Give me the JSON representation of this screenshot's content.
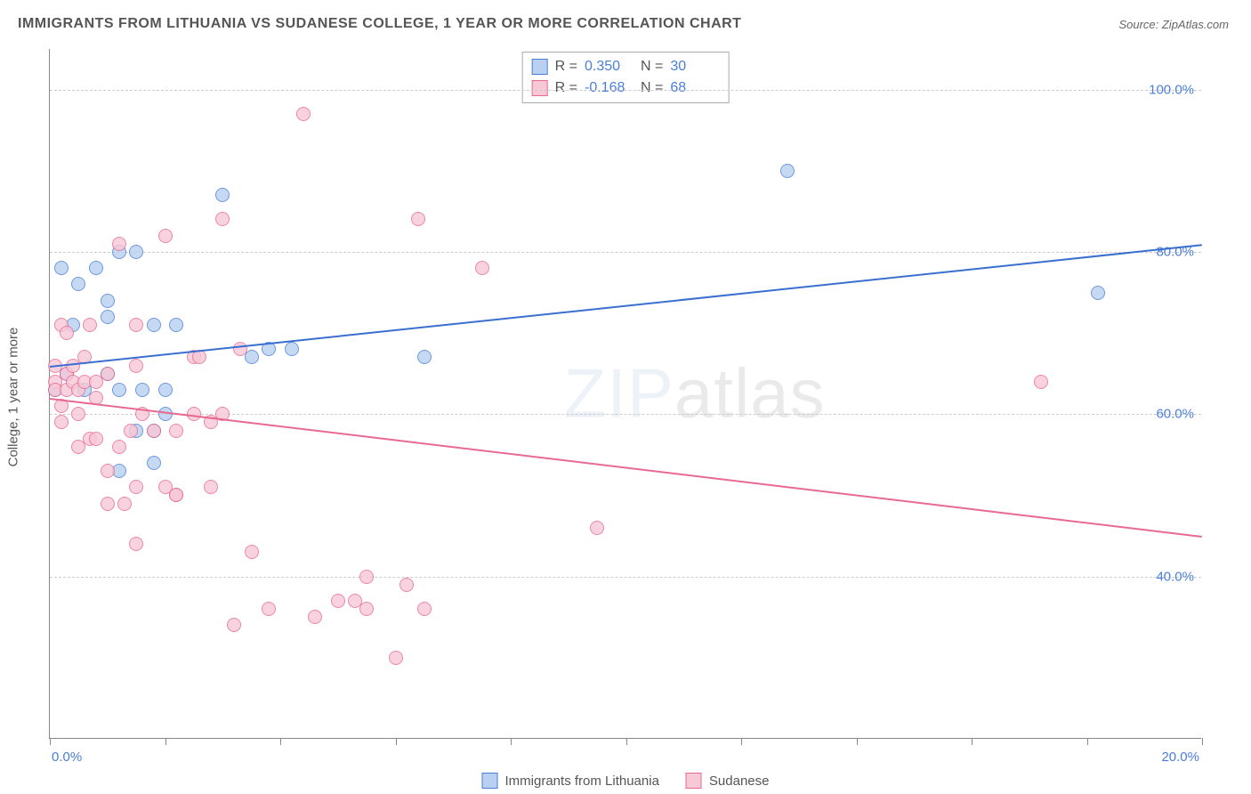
{
  "title": "IMMIGRANTS FROM LITHUANIA VS SUDANESE COLLEGE, 1 YEAR OR MORE CORRELATION CHART",
  "source_prefix": "Source: ",
  "source": "ZipAtlas.com",
  "ylabel": "College, 1 year or more",
  "watermark_a": "ZIP",
  "watermark_b": "atlas",
  "chart": {
    "type": "scatter",
    "xlim": [
      0,
      20
    ],
    "ylim": [
      20,
      105
    ],
    "xticks": [
      0,
      2,
      4,
      6,
      8,
      10,
      12,
      14,
      16,
      18,
      20
    ],
    "xticklabels_shown": {
      "0": "0.0%",
      "20": "20.0%"
    },
    "yticks": [
      40,
      60,
      80,
      100
    ],
    "yticklabels": {
      "40": "40.0%",
      "60": "60.0%",
      "80": "80.0%",
      "100": "100.0%"
    },
    "grid_color": "#cccccc",
    "axis_color": "#888888",
    "background_color": "#ffffff",
    "tick_label_color": "#4a7fd8",
    "marker_radius": 8,
    "marker_opacity": 0.8,
    "series": [
      {
        "name": "Immigrants from Lithuania",
        "fill": "#b9d0f0",
        "stroke": "#4a7fd8",
        "R": "0.350",
        "N": "30",
        "regression": {
          "y_at_xmin": 66,
          "y_at_xmax": 81,
          "color": "#3a6fd0",
          "width": 2
        },
        "points": [
          [
            0.1,
            63
          ],
          [
            0.2,
            78
          ],
          [
            0.3,
            65
          ],
          [
            0.4,
            71
          ],
          [
            0.5,
            76
          ],
          [
            0.6,
            63
          ],
          [
            0.8,
            78
          ],
          [
            1.0,
            74
          ],
          [
            1.0,
            65
          ],
          [
            1.0,
            72
          ],
          [
            1.2,
            80
          ],
          [
            1.2,
            63
          ],
          [
            1.2,
            53
          ],
          [
            1.5,
            80
          ],
          [
            1.5,
            58
          ],
          [
            1.6,
            63
          ],
          [
            1.8,
            58
          ],
          [
            1.8,
            71
          ],
          [
            1.8,
            54
          ],
          [
            2.0,
            63
          ],
          [
            2.0,
            60
          ],
          [
            2.2,
            71
          ],
          [
            3.0,
            87
          ],
          [
            3.5,
            67
          ],
          [
            3.8,
            68
          ],
          [
            4.2,
            68
          ],
          [
            6.5,
            67
          ],
          [
            12.8,
            90
          ],
          [
            18.2,
            75
          ]
        ]
      },
      {
        "name": "Sudanese",
        "fill": "#f7c8d6",
        "stroke": "#e86a92",
        "R": "-0.168",
        "N": "68",
        "regression": {
          "y_at_xmin": 62,
          "y_at_xmax": 45,
          "color": "#e86a92",
          "width": 2
        },
        "points": [
          [
            0.1,
            64
          ],
          [
            0.1,
            63
          ],
          [
            0.1,
            66
          ],
          [
            0.2,
            61
          ],
          [
            0.2,
            71
          ],
          [
            0.2,
            59
          ],
          [
            0.3,
            65
          ],
          [
            0.3,
            70
          ],
          [
            0.3,
            63
          ],
          [
            0.4,
            64
          ],
          [
            0.4,
            66
          ],
          [
            0.5,
            63
          ],
          [
            0.5,
            56
          ],
          [
            0.5,
            60
          ],
          [
            0.6,
            64
          ],
          [
            0.6,
            67
          ],
          [
            0.7,
            57
          ],
          [
            0.7,
            71
          ],
          [
            0.8,
            62
          ],
          [
            0.8,
            64
          ],
          [
            0.8,
            57
          ],
          [
            1.0,
            53
          ],
          [
            1.0,
            49
          ],
          [
            1.0,
            65
          ],
          [
            1.2,
            56
          ],
          [
            1.2,
            81
          ],
          [
            1.3,
            49
          ],
          [
            1.4,
            58
          ],
          [
            1.5,
            71
          ],
          [
            1.5,
            66
          ],
          [
            1.5,
            51
          ],
          [
            1.5,
            44
          ],
          [
            1.6,
            60
          ],
          [
            1.8,
            58
          ],
          [
            2.0,
            51
          ],
          [
            2.0,
            82
          ],
          [
            2.2,
            50
          ],
          [
            2.2,
            50
          ],
          [
            2.2,
            58
          ],
          [
            2.5,
            60
          ],
          [
            2.5,
            67
          ],
          [
            2.6,
            67
          ],
          [
            2.8,
            59
          ],
          [
            2.8,
            51
          ],
          [
            3.0,
            84
          ],
          [
            3.0,
            60
          ],
          [
            3.2,
            34
          ],
          [
            3.3,
            68
          ],
          [
            3.5,
            43
          ],
          [
            3.8,
            36
          ],
          [
            4.4,
            97
          ],
          [
            4.6,
            35
          ],
          [
            5.0,
            37
          ],
          [
            5.3,
            37
          ],
          [
            5.5,
            36
          ],
          [
            5.5,
            40
          ],
          [
            6.0,
            30
          ],
          [
            6.2,
            39
          ],
          [
            6.4,
            84
          ],
          [
            6.5,
            36
          ],
          [
            7.5,
            78
          ],
          [
            9.5,
            46
          ],
          [
            17.2,
            64
          ]
        ]
      }
    ]
  },
  "legend_labels": {
    "r_prefix": "R = ",
    "n_prefix": "N = "
  }
}
